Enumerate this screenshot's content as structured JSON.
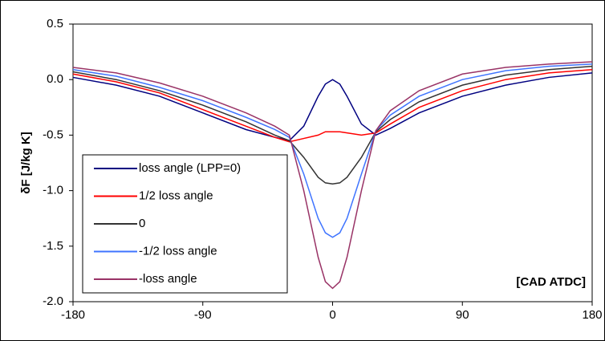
{
  "chart_data": {
    "type": "line",
    "y_label": "δF [J/kg K]",
    "x_label": "[CAD ATDC]",
    "x": [
      -180,
      -150,
      -120,
      -90,
      -60,
      -40,
      -30,
      -20,
      -10,
      -5,
      0,
      5,
      10,
      20,
      30,
      40,
      60,
      90,
      120,
      150,
      180
    ],
    "series": [
      {
        "name": "loss angle (LPP=0)",
        "color": "#000080",
        "values": [
          0.02,
          -0.05,
          -0.15,
          -0.3,
          -0.45,
          -0.52,
          -0.55,
          -0.42,
          -0.15,
          -0.04,
          0.0,
          -0.04,
          -0.15,
          -0.4,
          -0.5,
          -0.44,
          -0.3,
          -0.15,
          -0.05,
          0.02,
          0.06
        ]
      },
      {
        "name": "1/2 loss angle",
        "color": "#ff0000",
        "values": [
          0.05,
          -0.02,
          -0.12,
          -0.27,
          -0.42,
          -0.52,
          -0.56,
          -0.53,
          -0.5,
          -0.47,
          -0.47,
          -0.47,
          -0.48,
          -0.5,
          -0.48,
          -0.4,
          -0.25,
          -0.1,
          0.0,
          0.06,
          0.09
        ]
      },
      {
        "name": "0",
        "color": "#333333",
        "values": [
          0.07,
          0.0,
          -0.1,
          -0.23,
          -0.38,
          -0.5,
          -0.55,
          -0.7,
          -0.88,
          -0.93,
          -0.94,
          -0.93,
          -0.88,
          -0.7,
          -0.47,
          -0.36,
          -0.2,
          -0.05,
          0.04,
          0.09,
          0.12
        ]
      },
      {
        "name": "-1/2 loss angle",
        "color": "#3f74ff",
        "values": [
          0.09,
          0.03,
          -0.07,
          -0.19,
          -0.34,
          -0.45,
          -0.52,
          -0.85,
          -1.25,
          -1.38,
          -1.42,
          -1.38,
          -1.25,
          -0.85,
          -0.46,
          -0.32,
          -0.15,
          0.0,
          0.08,
          0.12,
          0.14
        ]
      },
      {
        "name": "-loss angle",
        "color": "#993366",
        "values": [
          0.11,
          0.06,
          -0.03,
          -0.15,
          -0.3,
          -0.42,
          -0.5,
          -1.0,
          -1.6,
          -1.82,
          -1.88,
          -1.82,
          -1.6,
          -1.0,
          -0.46,
          -0.28,
          -0.1,
          0.05,
          0.11,
          0.14,
          0.16
        ]
      }
    ],
    "xlim": [
      -180,
      180
    ],
    "xticks": [
      -180,
      -90,
      0,
      90,
      180
    ],
    "ylim": [
      -2.0,
      0.5
    ],
    "yticks": [
      0.5,
      {
        "value": 0.0,
        "label": "0.0"
      },
      -0.5,
      {
        "value": -1.0,
        "label": "-1.0"
      },
      -1.5,
      {
        "value": -2.0,
        "label": "-2.0"
      }
    ],
    "legend": "lower-left",
    "grid": false
  }
}
